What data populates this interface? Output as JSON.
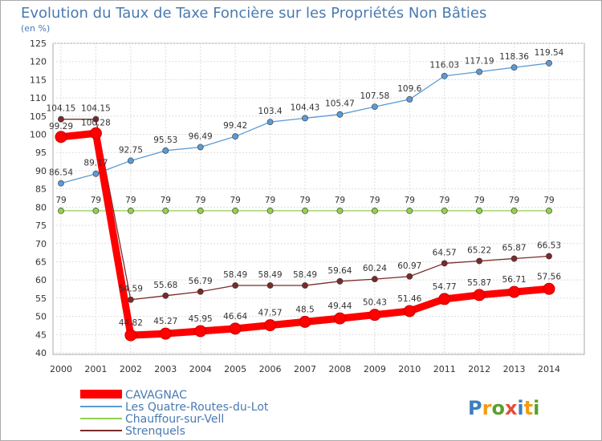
{
  "chart_data": {
    "type": "line",
    "title": "Evolution du Taux de Taxe Foncière sur les Propriétés Non Bâties",
    "ylabel": "(en %)",
    "xlabel": "",
    "ylim": [
      40,
      125
    ],
    "y_ticks": [
      40,
      45,
      50,
      55,
      60,
      65,
      70,
      75,
      80,
      85,
      90,
      95,
      100,
      105,
      110,
      115,
      120,
      125
    ],
    "categories": [
      "2000",
      "2001",
      "2002",
      "2003",
      "2004",
      "2005",
      "2006",
      "2007",
      "2008",
      "2009",
      "2010",
      "2011",
      "2012",
      "2013",
      "2014"
    ],
    "grid": true,
    "legend_position": "bottom-left",
    "series": [
      {
        "name": "CAVAGNAC",
        "color": "#ff0000",
        "values": [
          99.29,
          100.28,
          44.82,
          45.27,
          45.95,
          46.64,
          47.57,
          48.5,
          49.44,
          50.43,
          51.46,
          54.77,
          55.87,
          56.71,
          57.56
        ],
        "labels": [
          "99.29",
          "100.28",
          "44.82",
          "45.27",
          "45.95",
          "46.64",
          "47.57",
          "48.5",
          "49.44",
          "50.43",
          "51.46",
          "54.77",
          "55.87",
          "56.71",
          "57.56"
        ]
      },
      {
        "name": "Les Quatre-Routes-du-Lot",
        "color": "#5b9bd5",
        "values": [
          86.54,
          89.17,
          92.75,
          95.53,
          96.49,
          99.42,
          103.4,
          104.43,
          105.47,
          107.58,
          109.6,
          116.03,
          117.19,
          118.36,
          119.54
        ],
        "labels": [
          "86.54",
          "89.17",
          "92.75",
          "95.53",
          "96.49",
          "99.42",
          "103.4",
          "104.43",
          "105.47",
          "107.58",
          "109.6",
          "116.03",
          "117.19",
          "118.36",
          "119.54"
        ]
      },
      {
        "name": "Chauffour-sur-Vell",
        "color": "#92d050",
        "values": [
          79,
          79,
          79,
          79,
          79,
          79,
          79,
          79,
          79,
          79,
          79,
          79,
          79,
          79,
          79
        ],
        "labels": [
          "79",
          "79",
          "79",
          "79",
          "79",
          "79",
          "79",
          "79",
          "79",
          "79",
          "79",
          "79",
          "79",
          "79",
          "79"
        ]
      },
      {
        "name": "Strenquels",
        "color": "#7b2a2a",
        "values": [
          104.15,
          104.15,
          54.59,
          55.68,
          56.79,
          58.49,
          58.49,
          58.49,
          59.64,
          60.24,
          60.97,
          64.57,
          65.22,
          65.87,
          66.53
        ],
        "labels": [
          "104.15",
          "104.15",
          "54.59",
          "55.68",
          "56.79",
          "58.49",
          "58.49",
          "58.49",
          "59.64",
          "60.24",
          "60.97",
          "64.57",
          "65.22",
          "65.87",
          "66.53"
        ]
      }
    ]
  },
  "brand": {
    "logo_text": "Proxiti"
  }
}
